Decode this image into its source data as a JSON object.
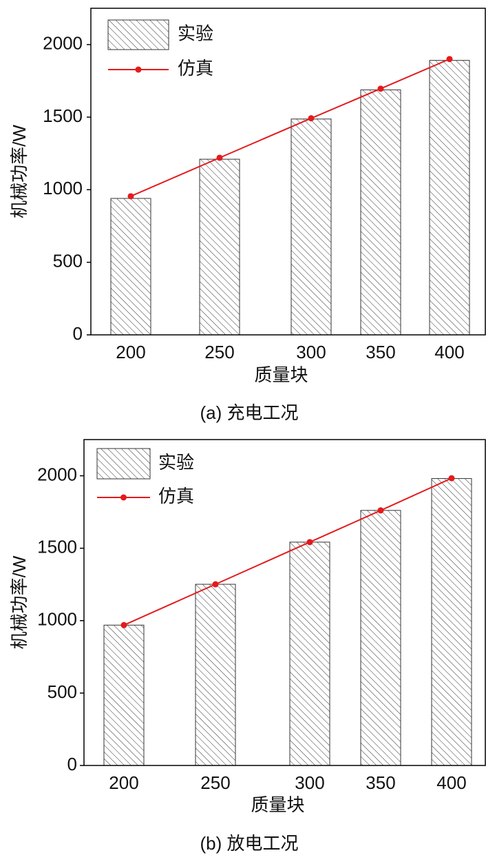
{
  "chart_data": [
    {
      "type": "bar",
      "caption": "(a) 充电工况",
      "x_label": "质量块",
      "y_label": "机械功率/W",
      "categories": [
        "200",
        "250",
        "300",
        "350",
        "400"
      ],
      "series": [
        {
          "name": "实验",
          "type": "bar",
          "color": "#333333",
          "values": [
            940,
            1210,
            1487,
            1688,
            1891
          ]
        },
        {
          "name": "仿真",
          "type": "line",
          "color": "#e41a1c",
          "values": [
            955,
            1220,
            1492,
            1696,
            1900
          ]
        }
      ],
      "ylim": [
        0,
        2250
      ],
      "yticks": [
        0,
        500,
        1000,
        1500,
        2000
      ],
      "legend": "upper left"
    },
    {
      "type": "bar",
      "caption": "(b) 放电工况",
      "x_label": "质量块",
      "y_label": "机械功率/W",
      "categories": [
        "200",
        "250",
        "300",
        "350",
        "400"
      ],
      "series": [
        {
          "name": "实验",
          "type": "bar",
          "color": "#333333",
          "values": [
            969,
            1251,
            1542,
            1761,
            1981
          ]
        },
        {
          "name": "仿真",
          "type": "line",
          "color": "#e41a1c",
          "values": [
            969,
            1251,
            1542,
            1761,
            1983
          ]
        }
      ],
      "ylim": [
        0,
        2250
      ],
      "yticks": [
        0,
        500,
        1000,
        1500,
        2000
      ],
      "legend": "upper left"
    }
  ]
}
